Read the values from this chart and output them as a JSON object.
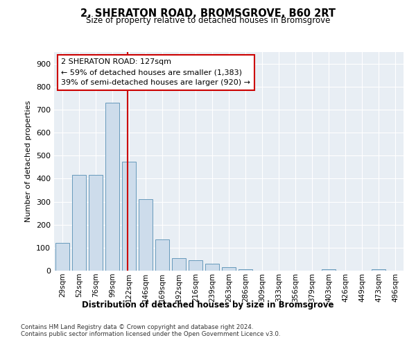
{
  "title": "2, SHERATON ROAD, BROMSGROVE, B60 2RT",
  "subtitle": "Size of property relative to detached houses in Bromsgrove",
  "xlabel": "Distribution of detached houses by size in Bromsgrove",
  "ylabel": "Number of detached properties",
  "categories": [
    "29sqm",
    "52sqm",
    "76sqm",
    "99sqm",
    "122sqm",
    "146sqm",
    "169sqm",
    "192sqm",
    "216sqm",
    "239sqm",
    "263sqm",
    "286sqm",
    "309sqm",
    "333sqm",
    "356sqm",
    "379sqm",
    "403sqm",
    "426sqm",
    "449sqm",
    "473sqm",
    "496sqm"
  ],
  "bar_values": [
    120,
    415,
    415,
    730,
    475,
    310,
    135,
    55,
    45,
    30,
    15,
    5,
    0,
    0,
    0,
    0,
    5,
    0,
    0,
    5,
    0
  ],
  "bar_color": "#cddceb",
  "bar_edge_color": "#6699bb",
  "red_line_index": 4,
  "annotation_box_text": "2 SHERATON ROAD: 127sqm\n← 59% of detached houses are smaller (1,383)\n39% of semi-detached houses are larger (920) →",
  "annotation_box_color": "#cc0000",
  "ylim": [
    0,
    950
  ],
  "yticks": [
    0,
    100,
    200,
    300,
    400,
    500,
    600,
    700,
    800,
    900
  ],
  "background_color": "#e8eef4",
  "grid_color": "#ffffff",
  "footer_line1": "Contains HM Land Registry data © Crown copyright and database right 2024.",
  "footer_line2": "Contains public sector information licensed under the Open Government Licence v3.0."
}
